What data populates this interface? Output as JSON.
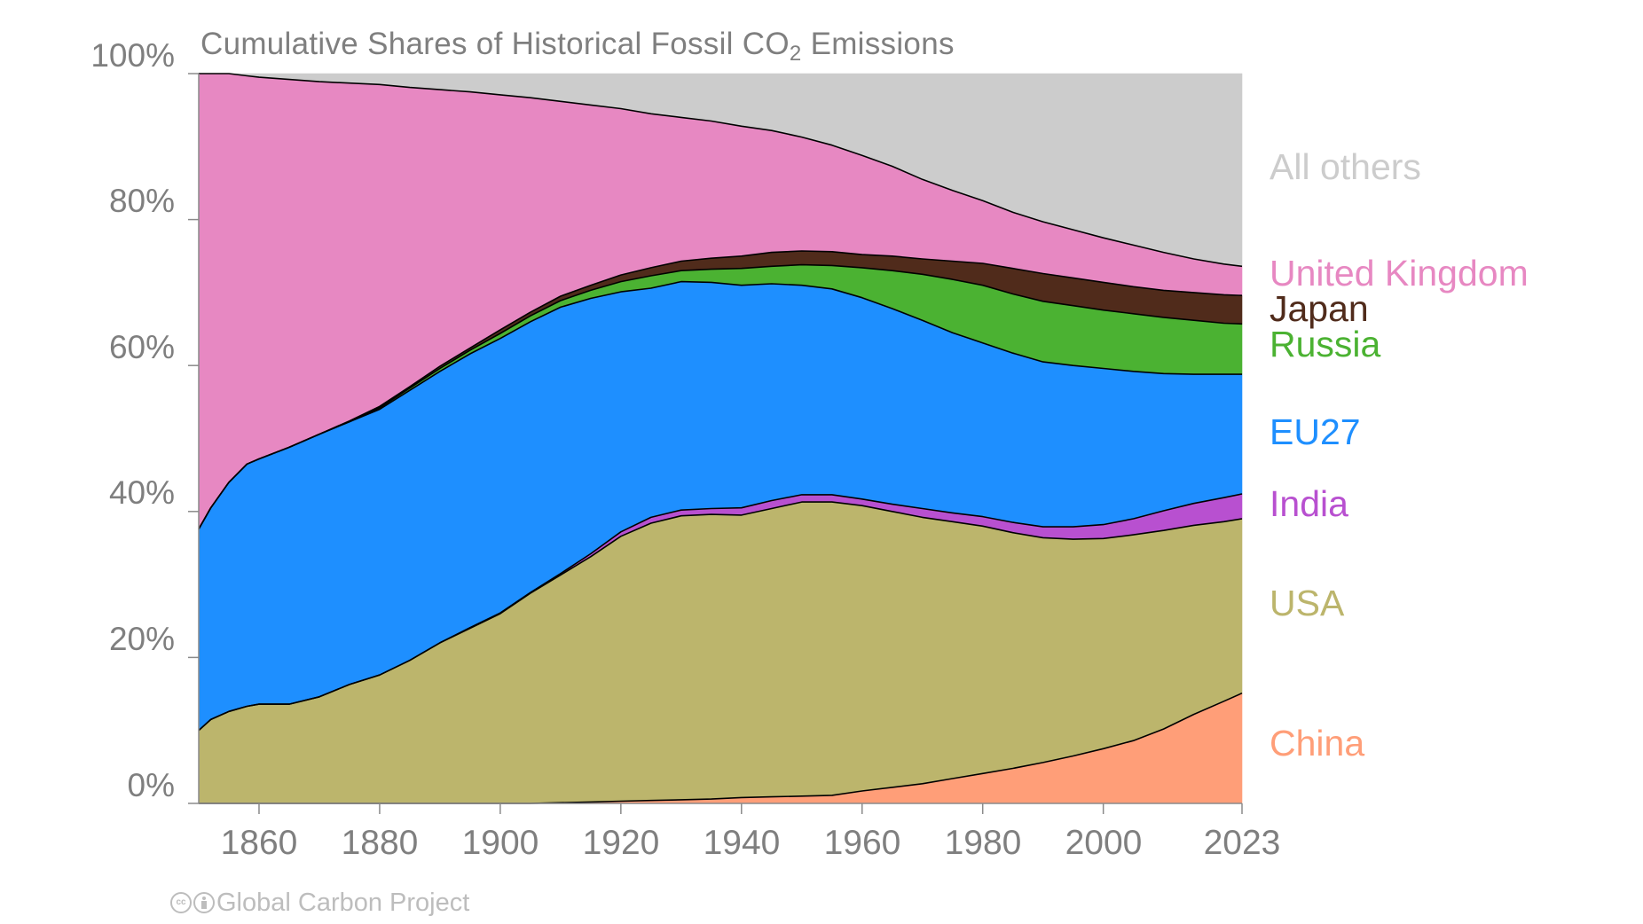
{
  "chart_data": {
    "type": "area",
    "stacked": true,
    "title": "Cumulative Shares of Historical Fossil CO",
    "title_subscript": "2",
    "title_suffix": " Emissions",
    "xlabel": "",
    "ylabel": "",
    "xlim": [
      1850,
      2023
    ],
    "ylim": [
      0,
      100
    ],
    "y_ticks": [
      0,
      20,
      40,
      60,
      80,
      100
    ],
    "y_tick_labels": [
      "0%",
      "20%",
      "40%",
      "60%",
      "80%",
      "100%"
    ],
    "x_ticks": [
      1860,
      1880,
      1900,
      1920,
      1940,
      1960,
      1980,
      2000,
      2023
    ],
    "x_tick_labels": [
      "1860",
      "1880",
      "1900",
      "1920",
      "1940",
      "1960",
      "1980",
      "2000",
      "2023"
    ],
    "x_minor_ticks": [
      1860,
      1880,
      1900,
      1920,
      1940,
      1960,
      1980,
      2000,
      2023
    ],
    "grid": false,
    "legend": "right (direct labels)",
    "units": "% of cumulative fossil CO2 emissions",
    "x": [
      1850,
      1852,
      1855,
      1858,
      1860,
      1865,
      1870,
      1875,
      1880,
      1885,
      1890,
      1895,
      1900,
      1905,
      1910,
      1915,
      1920,
      1925,
      1930,
      1935,
      1940,
      1945,
      1950,
      1955,
      1960,
      1965,
      1970,
      1975,
      1980,
      1985,
      1990,
      1995,
      2000,
      2005,
      2010,
      2015,
      2020,
      2023
    ],
    "series": [
      {
        "name": "China",
        "color": "#FF9E78",
        "values": [
          0,
          0,
          0,
          0,
          0,
          0,
          0,
          0,
          0,
          0,
          0,
          0,
          0,
          0,
          0.1,
          0.2,
          0.3,
          0.4,
          0.5,
          0.6,
          0.8,
          0.9,
          1.0,
          1.1,
          1.7,
          2.2,
          2.7,
          3.4,
          4.1,
          4.8,
          5.6,
          6.5,
          7.5,
          8.6,
          10.2,
          12.2,
          14.0,
          15.1
        ]
      },
      {
        "name": "USA",
        "color": "#BCB56C",
        "values": [
          10.0,
          11.5,
          12.6,
          13.3,
          13.6,
          13.6,
          14.6,
          16.3,
          17.6,
          19.6,
          22.0,
          24.0,
          26.0,
          28.8,
          31.2,
          33.6,
          36.3,
          38.0,
          38.9,
          39.0,
          38.7,
          39.5,
          40.3,
          40.2,
          39.1,
          37.8,
          36.5,
          35.2,
          33.9,
          32.3,
          30.8,
          29.7,
          28.8,
          28.2,
          27.2,
          25.9,
          24.6,
          23.9
        ]
      },
      {
        "name": "India",
        "color": "#B850D0",
        "values": [
          0,
          0,
          0,
          0,
          0,
          0,
          0,
          0,
          0,
          0,
          0,
          0.1,
          0.1,
          0.1,
          0.2,
          0.4,
          0.6,
          0.8,
          0.8,
          0.8,
          1.0,
          1.1,
          1.0,
          1.0,
          0.9,
          1.0,
          1.2,
          1.2,
          1.3,
          1.4,
          1.5,
          1.7,
          1.9,
          2.2,
          2.7,
          3.0,
          3.3,
          3.4
        ]
      },
      {
        "name": "EU27",
        "color": "#1E8FFF",
        "values": [
          27.6,
          29.0,
          31.4,
          33.2,
          33.6,
          35.2,
          36.0,
          36.0,
          36.4,
          37.0,
          37.2,
          37.5,
          37.6,
          37.1,
          36.5,
          35.0,
          32.9,
          31.4,
          31.3,
          31.0,
          30.5,
          29.7,
          28.7,
          28.2,
          27.6,
          26.8,
          25.8,
          24.7,
          23.8,
          23.2,
          22.6,
          22.1,
          21.4,
          20.2,
          18.8,
          17.7,
          16.9,
          16.4
        ]
      },
      {
        "name": "Russia",
        "color": "#4BB232",
        "values": [
          0,
          0,
          0,
          0,
          0,
          0,
          0,
          0,
          0.2,
          0.3,
          0.4,
          0.5,
          0.7,
          0.8,
          0.9,
          1.1,
          1.4,
          1.7,
          1.5,
          1.8,
          2.3,
          2.4,
          2.8,
          3.2,
          4.1,
          5.2,
          6.3,
          7.3,
          7.9,
          8.1,
          8.3,
          8.2,
          8.0,
          7.9,
          7.7,
          7.4,
          7.0,
          6.9
        ]
      },
      {
        "name": "Japan",
        "color": "#502B1B",
        "values": [
          0,
          0,
          0,
          0,
          0,
          0,
          0,
          0.1,
          0.2,
          0.2,
          0.3,
          0.3,
          0.5,
          0.5,
          0.6,
          0.7,
          0.9,
          1.1,
          1.3,
          1.5,
          1.7,
          1.9,
          1.9,
          1.9,
          1.8,
          2.0,
          2.1,
          2.5,
          3.0,
          3.5,
          3.8,
          3.8,
          3.8,
          3.7,
          3.7,
          3.8,
          3.9,
          3.9
        ]
      },
      {
        "name": "United Kingdom",
        "color": "#E788C2",
        "values": [
          62.4,
          59.5,
          56.0,
          53.2,
          52.3,
          50.4,
          48.3,
          46.3,
          44.1,
          41.0,
          37.9,
          35.1,
          32.2,
          29.4,
          26.7,
          24.7,
          22.8,
          21.1,
          19.7,
          18.8,
          17.8,
          16.7,
          15.6,
          14.6,
          13.6,
          12.3,
          10.9,
          9.7,
          8.6,
          7.7,
          7.1,
          6.6,
          6.1,
          5.7,
          5.2,
          4.6,
          4.2,
          4.0
        ]
      },
      {
        "name": "All others",
        "color": "#CCCCCC",
        "values": [
          0,
          0,
          0,
          0.3,
          0.5,
          0.8,
          1.1,
          1.3,
          1.5,
          1.9,
          2.2,
          2.5,
          2.9,
          3.3,
          3.8,
          4.3,
          4.8,
          5.5,
          6.0,
          6.5,
          7.2,
          7.8,
          8.7,
          9.8,
          11.2,
          12.7,
          14.5,
          16.0,
          17.4,
          19.0,
          20.3,
          21.4,
          22.5,
          23.5,
          24.5,
          25.4,
          26.1,
          26.4
        ]
      }
    ],
    "series_label_colors": {
      "All others": "#CCCCCC",
      "United Kingdom": "#E788C2",
      "Japan": "#502B1B",
      "Russia": "#4BB232",
      "EU27": "#1E8FFF",
      "India": "#B850D0",
      "USA": "#BCB56C",
      "China": "#FF9E78"
    }
  },
  "labels": {
    "all_others": "All others",
    "united_kingdom": "United Kingdom",
    "japan": "Japan",
    "russia": "Russia",
    "eu27": "EU27",
    "india": "India",
    "usa": "USA",
    "china": "China"
  },
  "credit": {
    "text": "Global Carbon Project",
    "cc_icon": "creative-commons-icon",
    "by_icon": "attribution-icon"
  }
}
